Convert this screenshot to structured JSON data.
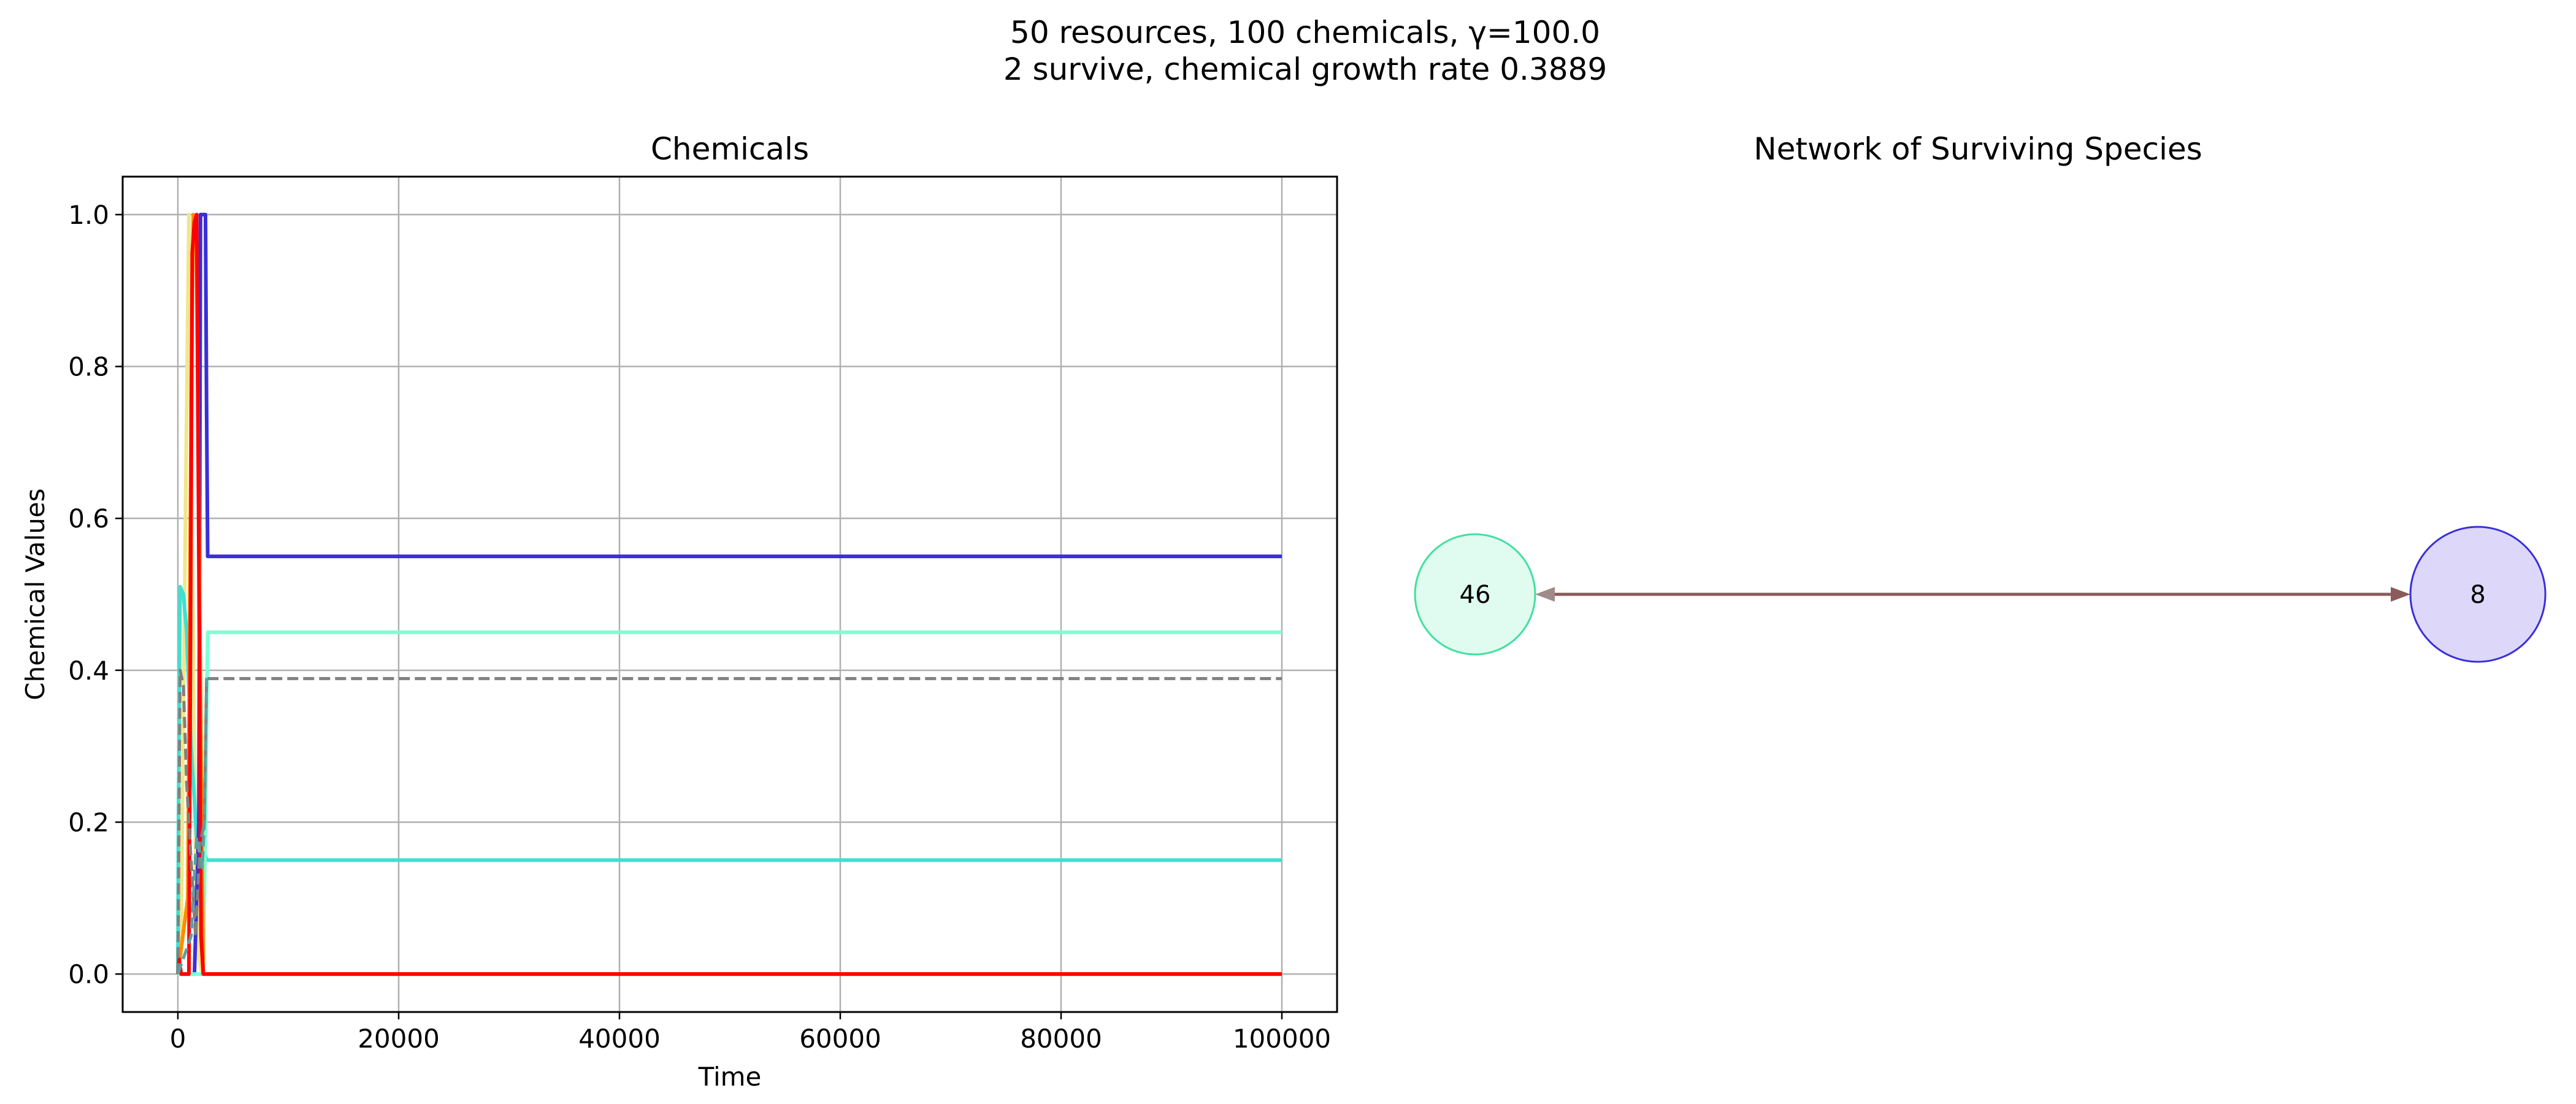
{
  "figure": {
    "suptitle_line1": "50 resources, 100 chemicals, γ=100.0",
    "suptitle_line2": "2 survive, chemical growth rate 0.3889"
  },
  "chart_data": [
    {
      "type": "line",
      "title": "Chemicals",
      "xlabel": "Time",
      "ylabel": "Chemical Values",
      "xlim": [
        -5000,
        105000
      ],
      "ylim": [
        -0.05,
        1.05
      ],
      "xticks": [
        0,
        20000,
        40000,
        60000,
        80000,
        100000
      ],
      "xtick_labels": [
        "0",
        "20000",
        "40000",
        "60000",
        "80000",
        "100000"
      ],
      "yticks": [
        0.0,
        0.2,
        0.4,
        0.6,
        0.8,
        1.0
      ],
      "ytick_labels": [
        "0.0",
        "0.2",
        "0.4",
        "0.6",
        "0.8",
        "1.0"
      ],
      "grid": true,
      "series": [
        {
          "color": "#f0e68c",
          "style": "solid",
          "x": [
            0,
            300,
            700,
            1000,
            1300,
            1600,
            1900,
            2200,
            2600,
            100000
          ],
          "y": [
            0.0,
            0.05,
            0.62,
            1.0,
            0.55,
            0.15,
            0.02,
            0.0,
            0.0,
            0.0
          ]
        },
        {
          "color": "#40e0d0",
          "style": "solid",
          "x": [
            0,
            50,
            200,
            500,
            800,
            1200,
            1700,
            2200,
            2600,
            100000
          ],
          "y": [
            0.0,
            0.2,
            0.51,
            0.5,
            0.45,
            0.3,
            0.18,
            0.17,
            0.15,
            0.15
          ]
        },
        {
          "color": "#3a2fd9",
          "style": "solid",
          "x": [
            0,
            1500,
            1900,
            2050,
            2500,
            2600,
            2700,
            100000
          ],
          "y": [
            0.0,
            0.0,
            0.2,
            1.0,
            1.0,
            0.75,
            0.55,
            0.55
          ]
        },
        {
          "color": "#7fffd4",
          "style": "solid",
          "x": [
            0,
            300,
            1200,
            2300,
            2500,
            2700,
            100000
          ],
          "y": [
            0.0,
            0.0,
            0.0,
            0.0,
            0.2,
            0.45,
            0.45
          ]
        },
        {
          "color": "#ff8c00",
          "style": "solid",
          "x": [
            0,
            900,
            1200,
            1400,
            1700,
            2000,
            2300,
            100000
          ],
          "y": [
            0.0,
            0.1,
            0.75,
            1.0,
            0.95,
            0.45,
            0.0,
            0.0
          ]
        },
        {
          "color": "#ff0000",
          "style": "solid",
          "x": [
            0,
            100,
            300,
            1000,
            1300,
            1500,
            1700,
            1900,
            2100,
            2300,
            100000
          ],
          "y": [
            0.0,
            0.02,
            0.0,
            0.0,
            0.95,
            0.99,
            1.0,
            0.55,
            0.05,
            0.0,
            0.0
          ]
        },
        {
          "color": "#808080",
          "style": "dashed",
          "x": [
            0,
            200,
            500,
            800,
            1200,
            1600,
            2000,
            2400,
            2600,
            100000
          ],
          "y": [
            0.0,
            0.4,
            0.38,
            0.25,
            0.15,
            0.05,
            0.17,
            0.2,
            0.389,
            0.389
          ]
        },
        {
          "color": "#5f9ea0",
          "style": "dashed",
          "x": [
            0,
            1200,
            1700,
            2200,
            2400,
            2600
          ],
          "y": [
            0.0,
            0.05,
            0.18,
            0.14,
            0.2,
            0.39
          ]
        }
      ]
    },
    {
      "type": "network",
      "title": "Network of Surviving Species",
      "nodes": [
        {
          "label": "46",
          "fill": "#e0fbf0",
          "stroke": "#40e0a0"
        },
        {
          "label": "8",
          "fill": "#ddd8fa",
          "stroke": "#3a2fd9"
        }
      ],
      "edges": [
        {
          "from": "46",
          "to": "8",
          "directed": "both",
          "color": "#8b5a5a"
        }
      ]
    }
  ]
}
